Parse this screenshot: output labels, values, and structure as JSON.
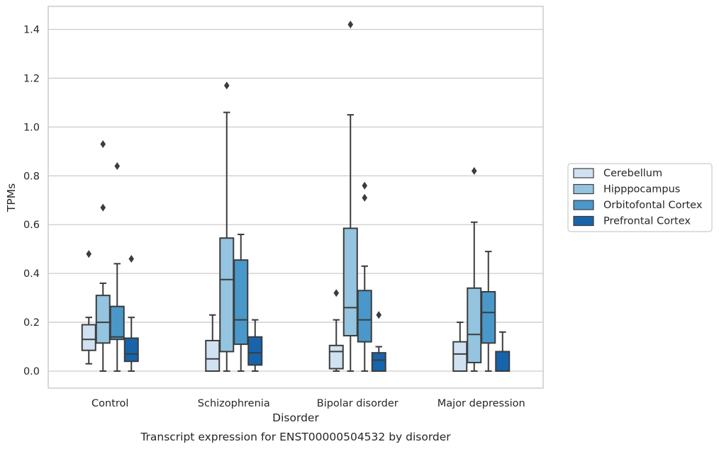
{
  "chart_data": {
    "type": "box",
    "caption": "Transcript expression for ENST00000504532 by disorder",
    "xlabel": "Disorder",
    "ylabel": "TPMs",
    "ylim": [
      -0.07,
      1.49
    ],
    "yticks": [
      0.0,
      0.2,
      0.4,
      0.6,
      0.8,
      1.0,
      1.2,
      1.4
    ],
    "ytick_labels": [
      "0.0",
      "0.2",
      "0.4",
      "0.6",
      "0.8",
      "1.0",
      "1.2",
      "1.4"
    ],
    "grid": "horizontal",
    "legend_position": "right",
    "categories": [
      "Control",
      "Schizophrenia",
      "Bipolar disorder",
      "Major depression"
    ],
    "series": [
      {
        "name": "Cerebellum",
        "color": "#d0e1f2",
        "boxes": [
          {
            "whislo": 0.03,
            "q1": 0.085,
            "med": 0.13,
            "q3": 0.19,
            "whishi": 0.22,
            "fliers": [
              0.48
            ]
          },
          {
            "whislo": 0.0,
            "q1": 0.0,
            "med": 0.05,
            "q3": 0.125,
            "whishi": 0.23,
            "fliers": []
          },
          {
            "whislo": 0.0,
            "q1": 0.01,
            "med": 0.08,
            "q3": 0.105,
            "whishi": 0.21,
            "fliers": [
              0.32
            ]
          },
          {
            "whislo": 0.0,
            "q1": 0.0,
            "med": 0.07,
            "q3": 0.12,
            "whishi": 0.2,
            "fliers": []
          }
        ]
      },
      {
        "name": "Hipppocampus",
        "color": "#94c4df",
        "boxes": [
          {
            "whislo": 0.0,
            "q1": 0.115,
            "med": 0.2,
            "q3": 0.31,
            "whishi": 0.36,
            "fliers": [
              0.67,
              0.93
            ]
          },
          {
            "whislo": 0.0,
            "q1": 0.08,
            "med": 0.375,
            "q3": 0.545,
            "whishi": 1.06,
            "fliers": [
              1.17
            ]
          },
          {
            "whislo": 0.0,
            "q1": 0.145,
            "med": 0.26,
            "q3": 0.585,
            "whishi": 1.05,
            "fliers": [
              1.42
            ]
          },
          {
            "whislo": 0.0,
            "q1": 0.035,
            "med": 0.15,
            "q3": 0.34,
            "whishi": 0.61,
            "fliers": [
              0.82
            ]
          }
        ]
      },
      {
        "name": "Orbitofontal Cortex",
        "color": "#4a98c9",
        "boxes": [
          {
            "whislo": 0.0,
            "q1": 0.13,
            "med": 0.14,
            "q3": 0.265,
            "whishi": 0.44,
            "fliers": [
              0.84
            ]
          },
          {
            "whislo": 0.0,
            "q1": 0.11,
            "med": 0.21,
            "q3": 0.455,
            "whishi": 0.56,
            "fliers": []
          },
          {
            "whislo": 0.0,
            "q1": 0.12,
            "med": 0.21,
            "q3": 0.33,
            "whishi": 0.43,
            "fliers": [
              0.71,
              0.76
            ]
          },
          {
            "whislo": 0.0,
            "q1": 0.115,
            "med": 0.24,
            "q3": 0.325,
            "whishi": 0.49,
            "fliers": []
          }
        ]
      },
      {
        "name": "Prefrontal Cortex",
        "color": "#1764ab",
        "boxes": [
          {
            "whislo": 0.0,
            "q1": 0.04,
            "med": 0.07,
            "q3": 0.135,
            "whishi": 0.22,
            "fliers": [
              0.46
            ]
          },
          {
            "whislo": 0.0,
            "q1": 0.025,
            "med": 0.075,
            "q3": 0.14,
            "whishi": 0.21,
            "fliers": []
          },
          {
            "whislo": 0.0,
            "q1": 0.0,
            "med": 0.045,
            "q3": 0.075,
            "whishi": 0.1,
            "fliers": [
              0.23
            ]
          },
          {
            "whislo": 0.0,
            "q1": 0.0,
            "med": 0.0,
            "q3": 0.08,
            "whishi": 0.16,
            "fliers": []
          }
        ]
      }
    ]
  }
}
